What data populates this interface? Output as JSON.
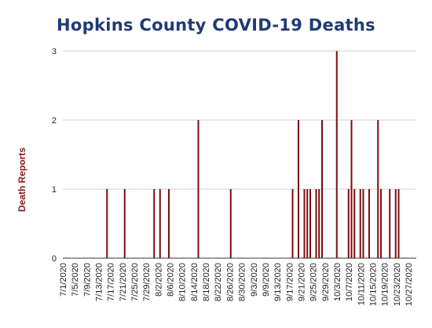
{
  "chart_data": {
    "type": "bar",
    "title": "Hopkins County COVID-19 Deaths",
    "ylabel": "Death Reports",
    "xlabel": "",
    "ylim": [
      0,
      3
    ],
    "yticks": [
      0,
      1,
      2,
      3
    ],
    "grid": true,
    "bar_color": "#7b0c0c",
    "x_range": [
      "2020-07-01",
      "2020-10-29"
    ],
    "x_tick_labels": [
      "7/1/2020",
      "7/5/2020",
      "7/9/2020",
      "7/13/2020",
      "7/17/2020",
      "7/21/2020",
      "7/25/2020",
      "7/29/2020",
      "8/2/2020",
      "8/6/2020",
      "8/10/2020",
      "8/14/2020",
      "8/18/2020",
      "8/22/2020",
      "8/26/2020",
      "8/30/2020",
      "9/3/2020",
      "9/9/2020",
      "9/13/2020",
      "9/17/2020",
      "9/21/2020",
      "9/25/2020",
      "9/29/2020",
      "10/3/2020",
      "10/7/2020",
      "10/11/2020",
      "10/15/2020",
      "10/19/2020",
      "10/23/2020",
      "10/27/2020"
    ],
    "points": [
      {
        "x": "2020-07-16",
        "y": 1
      },
      {
        "x": "2020-07-22",
        "y": 1
      },
      {
        "x": "2020-08-01",
        "y": 1
      },
      {
        "x": "2020-08-03",
        "y": 1
      },
      {
        "x": "2020-08-06",
        "y": 1
      },
      {
        "x": "2020-08-16",
        "y": 2
      },
      {
        "x": "2020-08-27",
        "y": 1
      },
      {
        "x": "2020-09-17",
        "y": 1
      },
      {
        "x": "2020-09-19",
        "y": 2
      },
      {
        "x": "2020-09-21",
        "y": 1
      },
      {
        "x": "2020-09-22",
        "y": 1
      },
      {
        "x": "2020-09-23",
        "y": 1
      },
      {
        "x": "2020-09-25",
        "y": 1
      },
      {
        "x": "2020-09-26",
        "y": 1
      },
      {
        "x": "2020-09-27",
        "y": 2
      },
      {
        "x": "2020-10-02",
        "y": 3
      },
      {
        "x": "2020-10-06",
        "y": 1
      },
      {
        "x": "2020-10-07",
        "y": 2
      },
      {
        "x": "2020-10-08",
        "y": 1
      },
      {
        "x": "2020-10-10",
        "y": 1
      },
      {
        "x": "2020-10-11",
        "y": 1
      },
      {
        "x": "2020-10-13",
        "y": 1
      },
      {
        "x": "2020-10-16",
        "y": 2
      },
      {
        "x": "2020-10-17",
        "y": 1
      },
      {
        "x": "2020-10-20",
        "y": 1
      },
      {
        "x": "2020-10-22",
        "y": 1
      },
      {
        "x": "2020-10-23",
        "y": 1
      }
    ]
  }
}
